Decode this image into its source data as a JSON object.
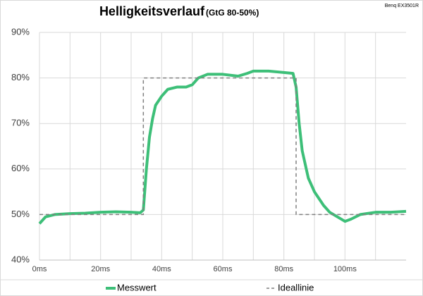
{
  "chart_data": {
    "type": "line",
    "title": "Helligkeitsverlauf",
    "subtitle": "(GtG 80-50%)",
    "annotation": "Benq EX3501R",
    "xlim": [
      0,
      120
    ],
    "ylim": [
      40,
      90
    ],
    "xticks": [
      {
        "value": 0,
        "label": "0ms"
      },
      {
        "value": 20,
        "label": "20ms"
      },
      {
        "value": 40,
        "label": "40ms"
      },
      {
        "value": 60,
        "label": "60ms"
      },
      {
        "value": 80,
        "label": "80ms"
      },
      {
        "value": 100,
        "label": "100ms"
      }
    ],
    "x_minor_grid": [
      10,
      30,
      50,
      70,
      90,
      110
    ],
    "yticks": [
      {
        "value": 40,
        "label": "40%"
      },
      {
        "value": 50,
        "label": "50%"
      },
      {
        "value": 60,
        "label": "60%"
      },
      {
        "value": 70,
        "label": "70%"
      },
      {
        "value": 80,
        "label": "80%"
      },
      {
        "value": 90,
        "label": "90%"
      }
    ],
    "grid": true,
    "legend": "bottom",
    "series": [
      {
        "name": "Messwert",
        "color": "#3dbf78",
        "dashed": false,
        "x": [
          0,
          2,
          5,
          10,
          15,
          20,
          25,
          30,
          33,
          34,
          35,
          36,
          37,
          38,
          40,
          42,
          45,
          48,
          50,
          52,
          55,
          60,
          65,
          68,
          70,
          75,
          80,
          83,
          84,
          85,
          86,
          88,
          90,
          93,
          95,
          100,
          102,
          105,
          110,
          115,
          120
        ],
        "values": [
          48,
          49.5,
          50,
          50.2,
          50.3,
          50.5,
          50.6,
          50.5,
          50.4,
          51,
          60,
          67,
          71,
          74,
          76,
          77.5,
          78,
          78,
          78.5,
          80,
          80.8,
          80.8,
          80.4,
          81,
          81.5,
          81.5,
          81.2,
          81,
          78,
          70,
          64,
          58,
          55,
          52,
          50.5,
          48.5,
          49,
          50,
          50.5,
          50.5,
          50.7
        ]
      },
      {
        "name": "Ideallinie",
        "color": "#808080",
        "dashed": true,
        "x": [
          0,
          34,
          34,
          84,
          84,
          120
        ],
        "values": [
          50,
          50,
          80,
          80,
          50,
          50
        ]
      }
    ]
  }
}
